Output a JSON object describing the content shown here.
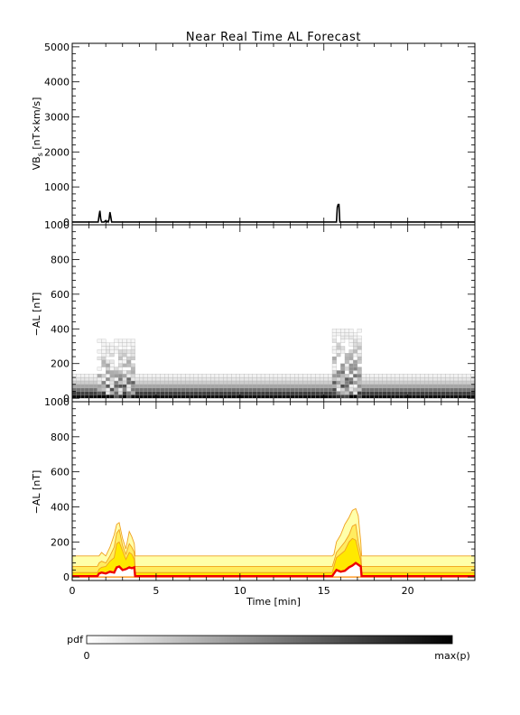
{
  "title": "Near Real Time AL Forecast",
  "colorbar": {
    "label": "pdf",
    "min_label": "0",
    "max_label": "max(p)"
  },
  "chart_data": [
    {
      "type": "line",
      "panel": "top",
      "ylabel_main": "VB",
      "ylabel_sub": "s",
      "ylabel_units": " [nT×km/s]",
      "xlim": [
        0,
        24
      ],
      "ylim": [
        -80,
        5100
      ],
      "yticks": [
        0,
        1000,
        2000,
        3000,
        4000,
        5000
      ],
      "series": [
        {
          "x": [
            0,
            1.55,
            1.6,
            1.65,
            1.7,
            1.75,
            1.9,
            2.0,
            2.05,
            2.1,
            2.15,
            2.2,
            2.25,
            2.3,
            2.35,
            2.4,
            15.75,
            15.8,
            15.85,
            15.9,
            15.95,
            24
          ],
          "values": [
            0,
            0,
            180,
            320,
            90,
            0,
            0,
            40,
            0,
            20,
            0,
            90,
            280,
            150,
            0,
            0,
            0,
            420,
            500,
            500,
            0,
            0
          ]
        }
      ]
    },
    {
      "type": "heatmap",
      "panel": "middle",
      "ylabel": "−AL [nT]",
      "xlim": [
        0,
        24
      ],
      "ylim": [
        -20,
        1000
      ],
      "yticks": [
        0,
        200,
        400,
        600,
        800,
        1000
      ],
      "x_step_min": 0.25,
      "y_bins_nT": [
        10,
        30,
        50,
        70,
        90,
        110,
        130,
        150,
        170,
        190,
        210,
        230,
        250,
        270,
        290,
        310,
        330,
        350,
        370,
        390
      ],
      "background_probability_by_bin": [
        0.95,
        0.75,
        0.55,
        0.35,
        0.2,
        0.1,
        0.05
      ],
      "active_intervals": [
        {
          "start": 1.5,
          "end": 3.75,
          "max_nT": 330
        },
        {
          "start": 15.5,
          "end": 17.25,
          "max_nT": 400
        }
      ]
    },
    {
      "type": "area",
      "panel": "bottom",
      "ylabel": "−AL [nT]",
      "xlabel": "Time [min]",
      "xlim": [
        0,
        24
      ],
      "ylim": [
        -20,
        1000
      ],
      "yticks": [
        0,
        200,
        400,
        600,
        800,
        1000
      ],
      "xticks": [
        0,
        5,
        10,
        15,
        20
      ],
      "x": [
        0,
        1.5,
        1.6,
        1.75,
        2.0,
        2.25,
        2.5,
        2.65,
        2.8,
        3.0,
        3.2,
        3.4,
        3.55,
        3.7,
        3.75,
        3.8,
        15.5,
        15.6,
        15.75,
        16.0,
        16.25,
        16.5,
        16.7,
        16.9,
        17.05,
        17.2,
        17.25,
        17.3,
        24
      ],
      "series": [
        {
          "name": "",
          "values": [
            5,
            5,
            20,
            25,
            20,
            30,
            25,
            55,
            60,
            40,
            45,
            55,
            50,
            55,
            5,
            5,
            5,
            20,
            40,
            30,
            35,
            55,
            65,
            80,
            70,
            60,
            5,
            5,
            5
          ]
        },
        {
          "name": "",
          "values": [
            25,
            25,
            45,
            55,
            60,
            90,
            110,
            190,
            200,
            150,
            100,
            140,
            130,
            100,
            25,
            25,
            25,
            60,
            110,
            130,
            150,
            200,
            220,
            210,
            150,
            90,
            25,
            25,
            25
          ]
        },
        {
          "name": "",
          "values": [
            60,
            60,
            80,
            90,
            80,
            120,
            170,
            250,
            270,
            180,
            130,
            190,
            170,
            140,
            60,
            60,
            60,
            90,
            140,
            170,
            200,
            240,
            290,
            300,
            200,
            130,
            60,
            60,
            60
          ]
        },
        {
          "name": "",
          "values": [
            120,
            120,
            120,
            140,
            120,
            170,
            240,
            300,
            310,
            220,
            160,
            260,
            230,
            190,
            120,
            120,
            120,
            130,
            200,
            240,
            300,
            340,
            380,
            390,
            350,
            200,
            120,
            120,
            120
          ]
        }
      ]
    }
  ]
}
